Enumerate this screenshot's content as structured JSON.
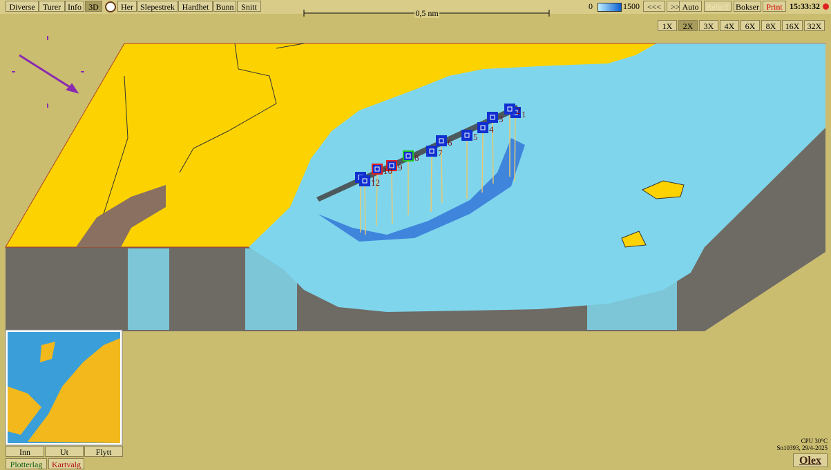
{
  "toolbar": {
    "left": [
      "Diverse",
      "Turer",
      "Info",
      "3D",
      "Her",
      "Slepestrek",
      "Hardhet",
      "Bunn",
      "Snitt"
    ],
    "scale": "0,5 nm",
    "depth_min": 0,
    "depth_max": 1500,
    "right": [
      "<<<",
      ">>>",
      "Auto",
      "Relieff",
      "Bokser",
      "Print"
    ],
    "clock": "15:33:32"
  },
  "zoom": [
    "1X",
    "2X",
    "3X",
    "4X",
    "6X",
    "8X",
    "16X",
    "32X"
  ],
  "markers": [
    "1",
    "2",
    "3",
    "4",
    "5",
    "6",
    "7",
    "8",
    "9",
    "10",
    "11",
    "12"
  ],
  "minimap_buttons": [
    "Inn",
    "Ut",
    "Flytt"
  ],
  "tabs": [
    "Plotterlag",
    "Kartvalg"
  ],
  "status": {
    "cpu": "CPU 30°C",
    "serial": "Sn10393, 29/4-2025",
    "brand": "Olex"
  }
}
